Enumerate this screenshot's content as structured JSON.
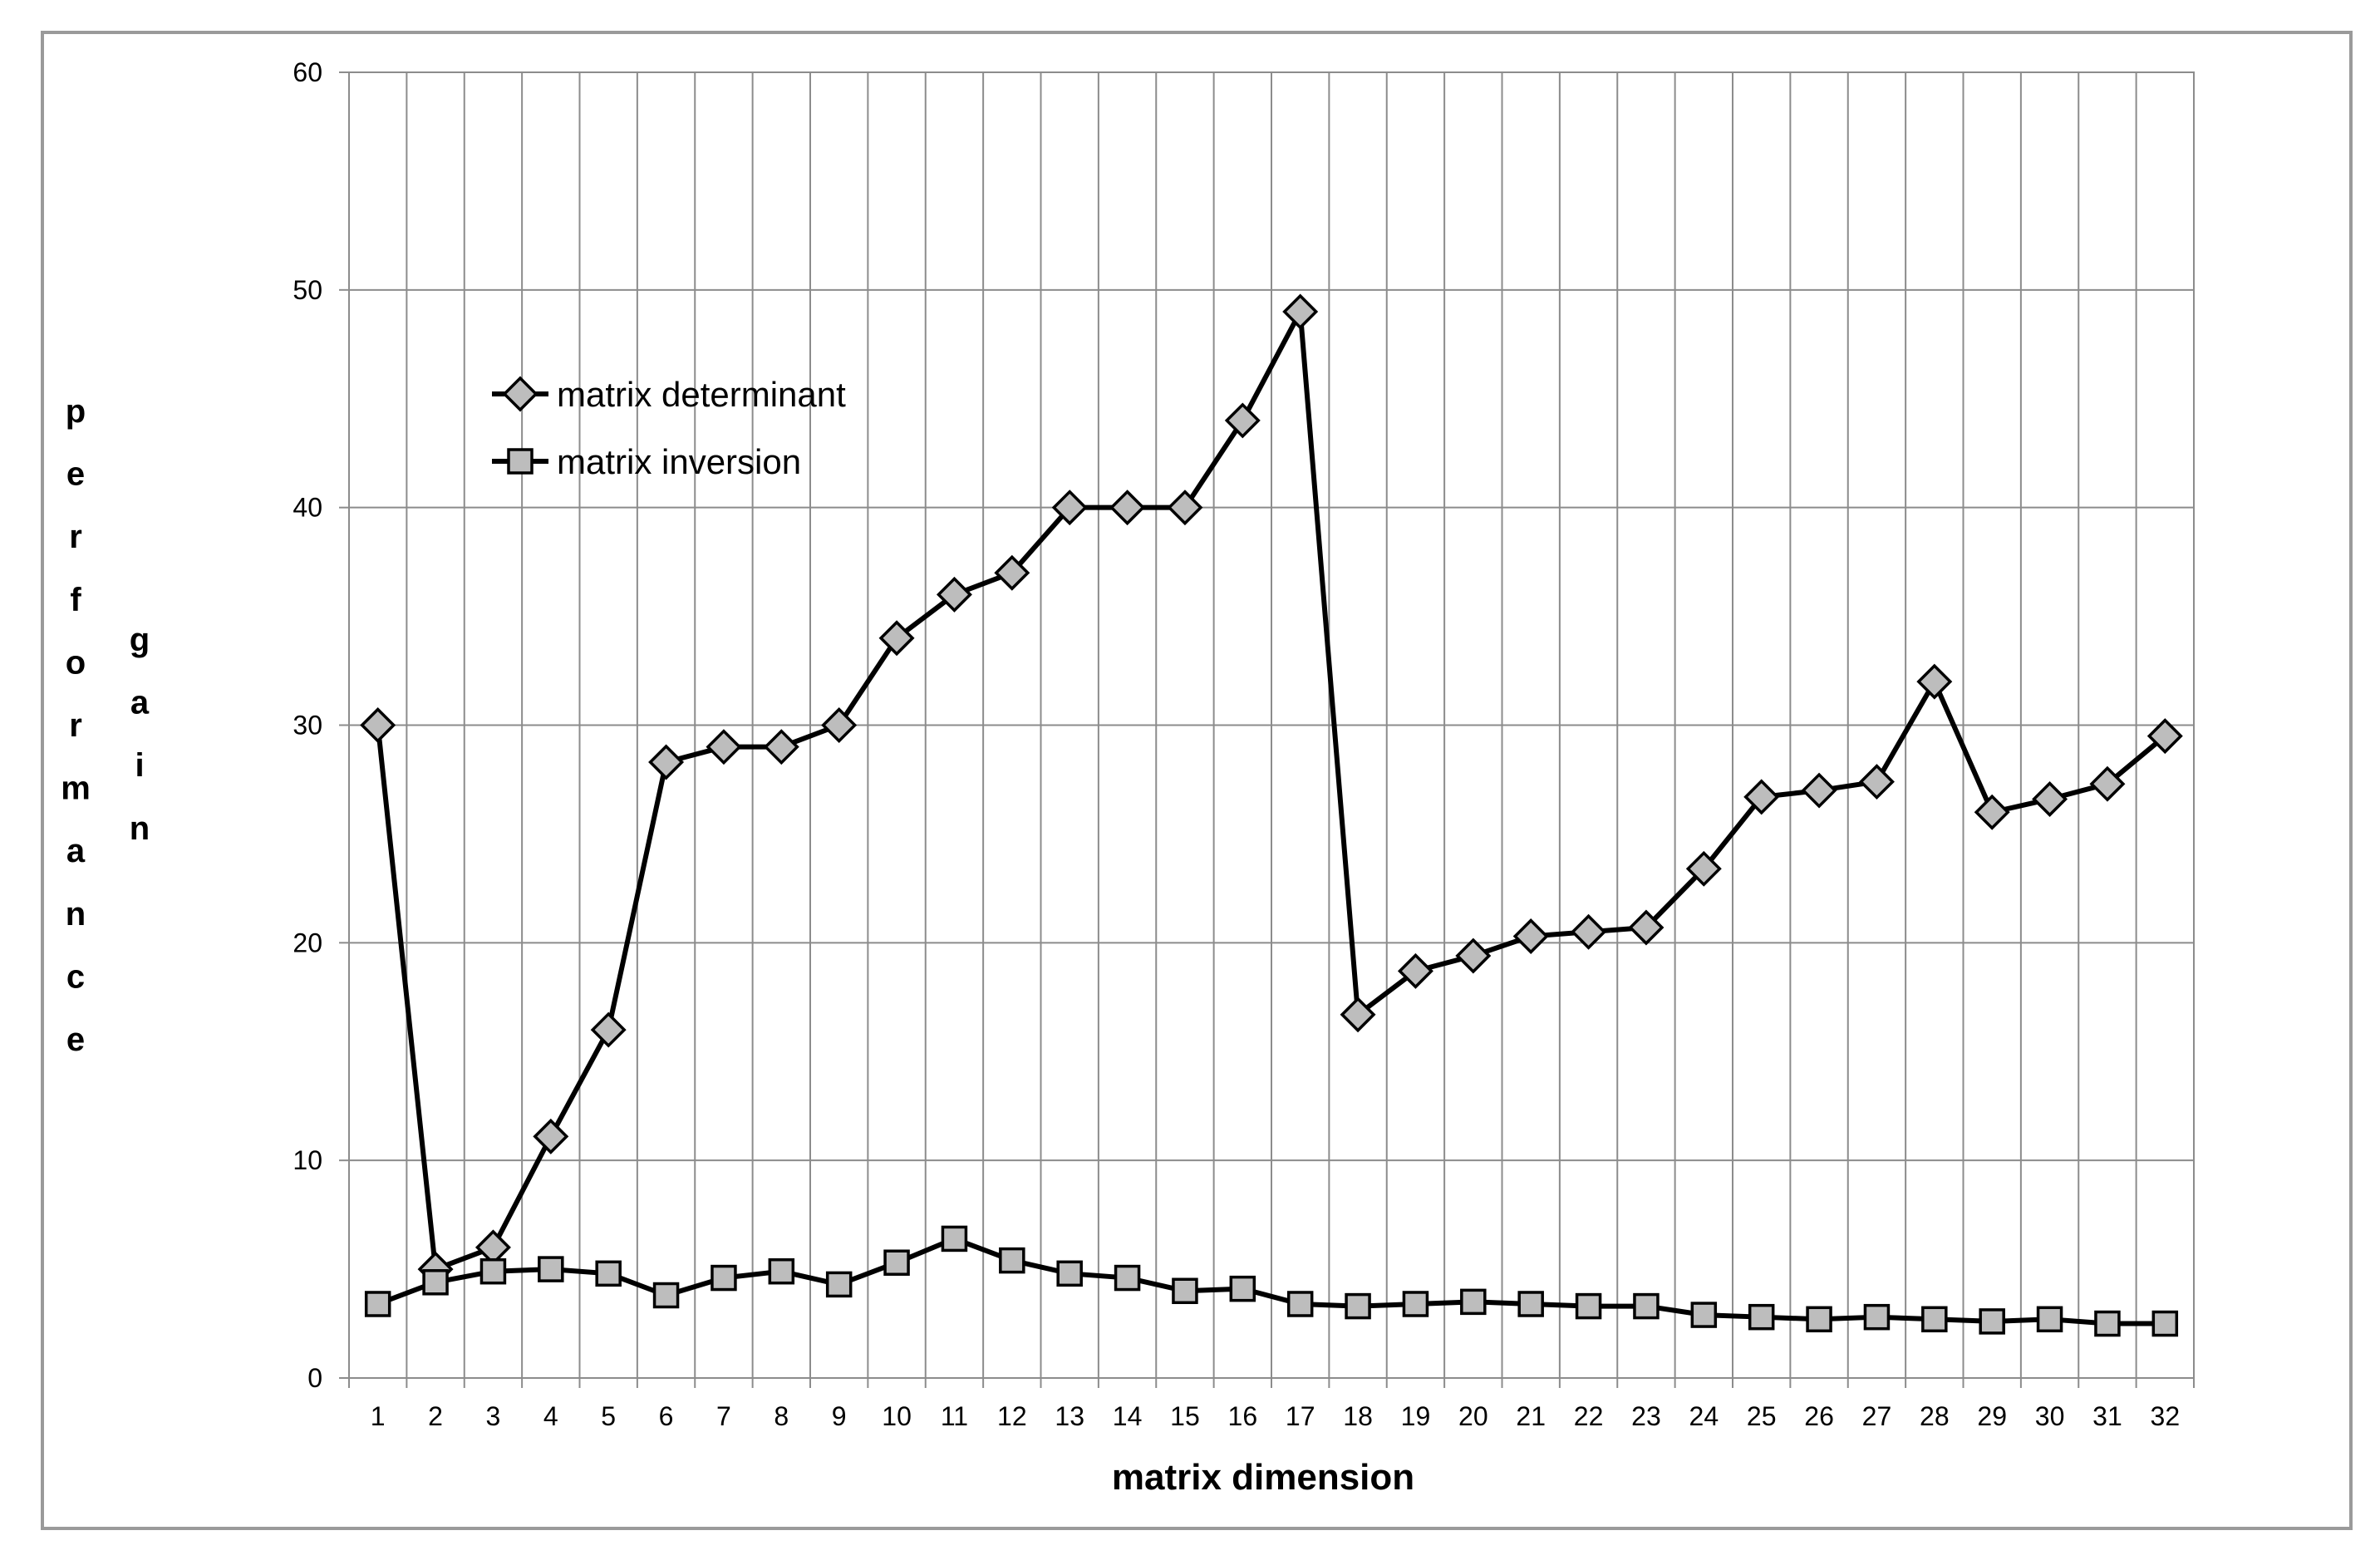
{
  "chart_data": {
    "type": "line",
    "title": "",
    "xlabel": "matrix dimension",
    "ylabel": "performance gain",
    "ylabel_words": [
      "performance",
      "gain"
    ],
    "categories": [
      "1",
      "2",
      "3",
      "4",
      "5",
      "6",
      "7",
      "8",
      "9",
      "10",
      "11",
      "12",
      "13",
      "14",
      "15",
      "16",
      "17",
      "18",
      "19",
      "20",
      "21",
      "22",
      "23",
      "24",
      "25",
      "26",
      "27",
      "28",
      "29",
      "30",
      "31",
      "32"
    ],
    "ylim": [
      0,
      60
    ],
    "yticks": [
      0,
      10,
      20,
      30,
      40,
      50,
      60
    ],
    "grid": true,
    "legend_position": "upper-left",
    "series": [
      {
        "name": "matrix determinant",
        "marker": "diamond",
        "line_color": "#000000",
        "marker_fill": "#bdbdbd",
        "values": [
          30,
          5,
          6,
          11.1,
          16,
          28.3,
          29,
          29,
          30,
          34,
          36,
          37,
          40,
          40,
          40,
          44,
          49,
          16.7,
          18.7,
          19.4,
          20.3,
          20.5,
          20.7,
          23.4,
          26.7,
          27,
          27.4,
          32,
          26,
          26.6,
          27.3,
          29.5
        ]
      },
      {
        "name": "matrix inversion",
        "marker": "square",
        "line_color": "#000000",
        "marker_fill": "#bdbdbd",
        "values": [
          3.4,
          4.4,
          4.9,
          5,
          4.8,
          3.8,
          4.6,
          4.9,
          4.3,
          5.3,
          6.4,
          5.4,
          4.8,
          4.6,
          4,
          4.1,
          3.4,
          3.3,
          3.4,
          3.5,
          3.4,
          3.3,
          3.3,
          2.9,
          2.8,
          2.7,
          2.8,
          2.7,
          2.6,
          2.7,
          2.5,
          2.5
        ]
      }
    ]
  }
}
